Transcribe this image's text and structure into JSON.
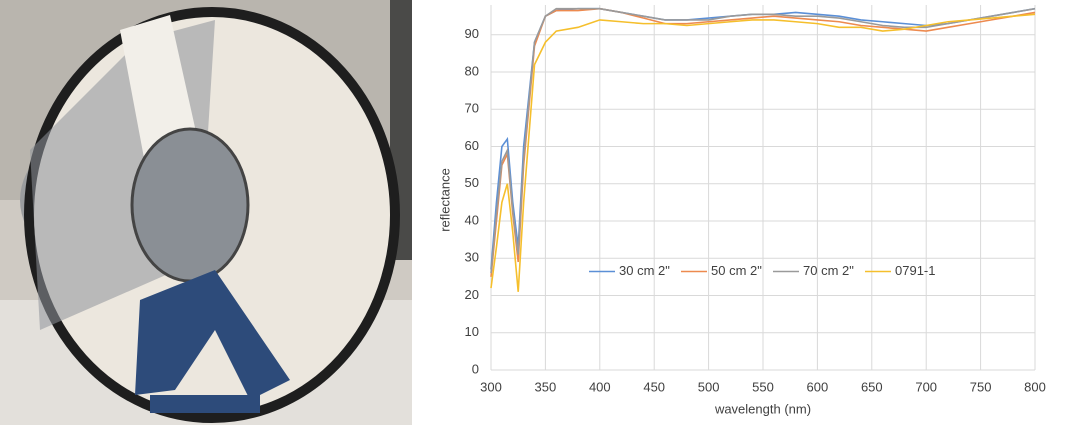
{
  "chart_data": {
    "type": "line",
    "x_label": "wavelength (nm)",
    "y_label": "reflectance",
    "x": [
      300,
      305,
      310,
      315,
      320,
      325,
      330,
      340,
      350,
      360,
      380,
      400,
      420,
      440,
      460,
      480,
      500,
      520,
      540,
      560,
      580,
      600,
      620,
      640,
      660,
      680,
      700,
      720,
      740,
      760,
      780,
      800
    ],
    "series": [
      {
        "name": "30 cm 2\"",
        "color": "#5b8fd6",
        "values": [
          27,
          45,
          60,
          62,
          45,
          33,
          60,
          88,
          95,
          96.5,
          97,
          97,
          96,
          95,
          94,
          94,
          94.5,
          95,
          95.5,
          95.5,
          96,
          95.5,
          95,
          94,
          93.5,
          93,
          92.5,
          93,
          94,
          95,
          96,
          97
        ]
      },
      {
        "name": "50 cm 2\"",
        "color": "#ed8a4f",
        "values": [
          25,
          40,
          55,
          58,
          42,
          29,
          55,
          87,
          95,
          96.5,
          96.5,
          97,
          96,
          94.5,
          93,
          93,
          93.5,
          94,
          94.5,
          95,
          94.5,
          94,
          93.5,
          92.5,
          92,
          91.5,
          91,
          92,
          93,
          94,
          95,
          96
        ]
      },
      {
        "name": "70 cm 2\"",
        "color": "#9a9a9a",
        "values": [
          26,
          42,
          56,
          59,
          43,
          31,
          57,
          88,
          95,
          97,
          97,
          97,
          96,
          95,
          94,
          94,
          94,
          95,
          95.5,
          95.5,
          95,
          95,
          94.5,
          93.5,
          92.5,
          92,
          92,
          93,
          94,
          95,
          96,
          97
        ]
      },
      {
        "name": "0791-1",
        "color": "#f5bf2c",
        "values": [
          22,
          33,
          45,
          50,
          37,
          21,
          45,
          82,
          88,
          91,
          92,
          94,
          93.5,
          93,
          93,
          92.5,
          93,
          93.5,
          94,
          94,
          93.5,
          93,
          92,
          92,
          91,
          91.5,
          92.5,
          93.5,
          94,
          94.5,
          95,
          95.5
        ]
      }
    ],
    "xlim": [
      300,
      800
    ],
    "xticks": [
      300,
      350,
      400,
      450,
      500,
      550,
      600,
      650,
      700,
      750,
      800
    ],
    "ylim": [
      0,
      98
    ],
    "yticks": [
      0,
      10,
      20,
      30,
      40,
      50,
      60,
      70,
      80,
      90
    ],
    "grid": true,
    "legend": "center"
  }
}
